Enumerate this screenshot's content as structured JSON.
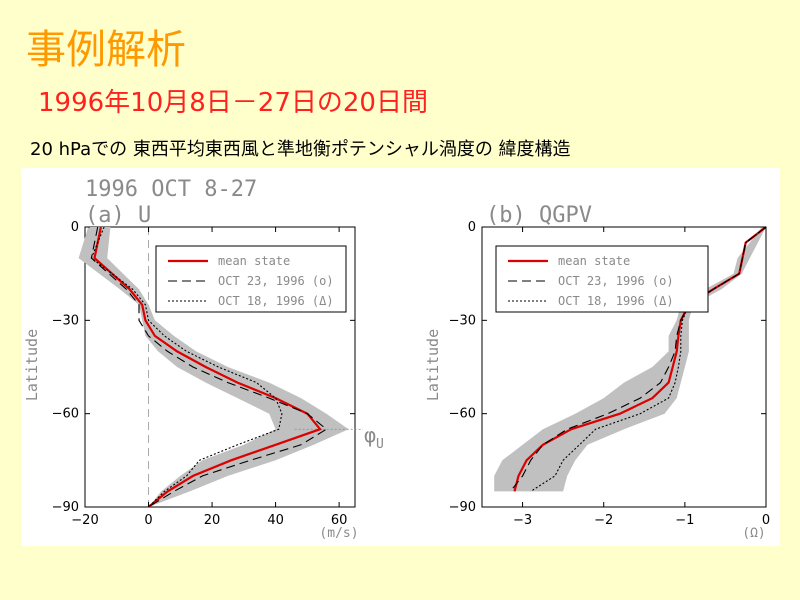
{
  "slide": {
    "title": "事例解析",
    "subtitle": "1996年10月8日－27日の20日間",
    "description": "20 hPaでの 東西平均東西風と準地衡ポテンシャル渦度の 緯度構造"
  },
  "colors": {
    "background": "#ffffcc",
    "title": "#ff9900",
    "subtitle": "#ff2020",
    "mean": "#dd0000",
    "band": "#c0c0c0"
  },
  "chart_data": [
    {
      "type": "line",
      "title": "1996 OCT 8-27",
      "panel_label": "(a) U",
      "xlabel": "(m/s)",
      "ylabel": "Latitude",
      "xlim": [
        -20,
        65
      ],
      "ylim": [
        -90,
        0
      ],
      "xticks": [
        -20,
        0,
        20,
        40,
        60
      ],
      "yticks": [
        0,
        -30,
        -60,
        -90
      ],
      "annotation": "φ",
      "annotation_sub": "U",
      "legend_position": "top-right",
      "legend": [
        "mean state",
        "OCT 23, 1996 (o)",
        "OCT 18, 1996 (Δ)"
      ],
      "band": {
        "y": [
          0,
          -10,
          -20,
          -25,
          -30,
          -35,
          -40,
          -45,
          -50,
          -55,
          -60,
          -65,
          -70,
          -75,
          -80,
          -85,
          -90
        ],
        "low": [
          -19,
          -22,
          -9,
          -3,
          -2,
          -1,
          3,
          9,
          18,
          28,
          38,
          40,
          30,
          17,
          10,
          4,
          0
        ],
        "high": [
          -12,
          -13,
          -3,
          0,
          2,
          8,
          15,
          25,
          38,
          48,
          56,
          63,
          52,
          40,
          25,
          13,
          0
        ]
      },
      "series": [
        {
          "name": "mean state",
          "style": "solid",
          "x": [
            -15,
            -17,
            -6,
            -2,
            -1,
            2,
            9,
            18,
            28,
            40,
            50,
            54,
            40,
            26,
            14,
            6,
            0
          ],
          "y": [
            0,
            -10,
            -20,
            -25,
            -30,
            -35,
            -40,
            -45,
            -50,
            -55,
            -60,
            -65,
            -70,
            -75,
            -80,
            -85,
            -90
          ]
        },
        {
          "name": "OCT 23, 1996 (o)",
          "style": "dashed",
          "x": [
            -16,
            -18,
            -7,
            -3,
            -3,
            0,
            6,
            14,
            25,
            38,
            50,
            56,
            48,
            32,
            17,
            8,
            0
          ],
          "y": [
            0,
            -10,
            -20,
            -25,
            -30,
            -35,
            -40,
            -45,
            -50,
            -55,
            -60,
            -65,
            -70,
            -75,
            -80,
            -85,
            -90
          ]
        },
        {
          "name": "OCT 18, 1996 (Δ)",
          "style": "dotted",
          "x": [
            -14,
            -18,
            -5,
            -1,
            0,
            5,
            12,
            22,
            34,
            40,
            42,
            41,
            28,
            16,
            12,
            5,
            0
          ],
          "y": [
            0,
            -10,
            -20,
            -25,
            -30,
            -35,
            -40,
            -45,
            -50,
            -55,
            -60,
            -65,
            -70,
            -75,
            -80,
            -85,
            -90
          ]
        }
      ]
    },
    {
      "type": "line",
      "panel_label": "(b) QGPV",
      "xlabel": "(Ω)",
      "ylabel": "Latitude",
      "xlim": [
        -3.5,
        0
      ],
      "ylim": [
        -90,
        0
      ],
      "xticks": [
        -3,
        -2,
        -1,
        0
      ],
      "yticks": [
        0,
        -30,
        -60,
        -90
      ],
      "legend_position": "top-right",
      "legend": [
        "mean state",
        "OCT 23, 1996 (o)",
        "OCT 18, 1996 (Δ)"
      ],
      "band": {
        "y": [
          0,
          -10,
          -15,
          -20,
          -25,
          -30,
          -35,
          -40,
          -45,
          -50,
          -55,
          -60,
          -65,
          -70,
          -75,
          -80,
          -85
        ],
        "low": [
          -0.05,
          -0.35,
          -0.4,
          -0.75,
          -1.05,
          -1.1,
          -1.2,
          -1.2,
          -1.4,
          -1.75,
          -2.0,
          -2.35,
          -2.75,
          -3.0,
          -3.25,
          -3.35,
          -3.35
        ],
        "high": [
          0,
          -0.2,
          -0.3,
          -0.55,
          -0.9,
          -0.95,
          -0.95,
          -0.95,
          -1.0,
          -1.05,
          -1.1,
          -1.25,
          -1.75,
          -2.2,
          -2.35,
          -2.45,
          -2.5
        ]
      },
      "series": [
        {
          "name": "mean state",
          "style": "solid",
          "x": [
            0,
            -0.25,
            -0.33,
            -0.65,
            -0.95,
            -1.05,
            -1.08,
            -1.1,
            -1.15,
            -1.2,
            -1.4,
            -1.8,
            -2.4,
            -2.75,
            -2.95,
            -3.05,
            -3.1
          ],
          "y": [
            0,
            -5,
            -15,
            -20,
            -25,
            -30,
            -35,
            -40,
            -45,
            -50,
            -55,
            -60,
            -65,
            -70,
            -75,
            -80,
            -85
          ]
        },
        {
          "name": "OCT 23, 1996 (o)",
          "style": "dashed",
          "x": [
            0,
            -0.25,
            -0.33,
            -0.65,
            -0.95,
            -1.05,
            -1.1,
            -1.12,
            -1.2,
            -1.3,
            -1.55,
            -1.95,
            -2.45,
            -2.75,
            -2.9,
            -3.0,
            -3.15
          ],
          "y": [
            0,
            -5,
            -15,
            -20,
            -25,
            -30,
            -35,
            -40,
            -45,
            -50,
            -55,
            -60,
            -65,
            -70,
            -75,
            -80,
            -85
          ]
        },
        {
          "name": "OCT 18, 1996 (Δ)",
          "style": "dotted",
          "x": [
            0,
            -0.25,
            -0.33,
            -0.65,
            -0.95,
            -1.03,
            -1.05,
            -1.05,
            -1.08,
            -1.12,
            -1.2,
            -1.55,
            -2.1,
            -2.3,
            -2.5,
            -2.6,
            -2.9
          ],
          "y": [
            0,
            -5,
            -15,
            -20,
            -25,
            -30,
            -35,
            -40,
            -45,
            -50,
            -55,
            -60,
            -65,
            -70,
            -75,
            -80,
            -85
          ]
        }
      ]
    }
  ]
}
